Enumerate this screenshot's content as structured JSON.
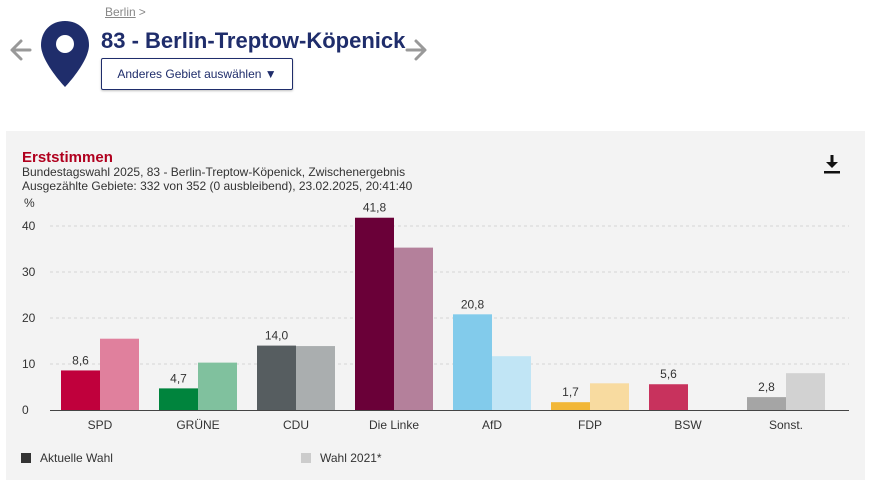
{
  "breadcrumb": {
    "link": "Berlin",
    "separator": ">"
  },
  "header": {
    "title": "83 - Berlin-Treptow-Köpenick",
    "select_button": "Anderes Gebiet auswählen ▼"
  },
  "icons": {
    "pin": "map-pin-icon",
    "prev": "arrow-left-icon",
    "next": "arrow-right-icon",
    "download": "download-icon"
  },
  "chart_data": {
    "type": "bar",
    "title": "Erststimmen",
    "subtitle": [
      "Bundestagswahl 2025, 83 - Berlin-Treptow-Köpenick, Zwischenergebnis",
      "Ausgezählte Gebiete: 332 von 352 (0 ausbleibend), 23.02.2025, 20:41:40"
    ],
    "ylabel": "%",
    "ylim": [
      0,
      45
    ],
    "yticks": [
      0,
      10,
      20,
      30,
      40
    ],
    "grid": true,
    "legend_position": "bottom-left",
    "categories": [
      "SPD",
      "GRÜNE",
      "CDU",
      "Die Linke",
      "AfD",
      "FDP",
      "BSW",
      "Sonst."
    ],
    "series": [
      {
        "name": "Aktuelle Wahl",
        "values": [
          8.6,
          4.7,
          14.0,
          41.8,
          20.8,
          1.7,
          5.6,
          2.8
        ],
        "labels": [
          "8,6",
          "4,7",
          "14,0",
          "41,8",
          "20,8",
          "1,7",
          "5,6",
          "2,8"
        ],
        "colors": [
          "#c0003c",
          "#00843d",
          "#565d60",
          "#6a0038",
          "#82cbeb",
          "#f2b737",
          "#c8325d",
          "#a5a5a5"
        ]
      },
      {
        "name": "Wahl 2021*",
        "values": [
          15.5,
          10.3,
          13.9,
          35.3,
          11.7,
          5.8,
          null,
          8.0
        ],
        "colors": [
          "#e0809d",
          "#80c19e",
          "#aaaeaf",
          "#b4809b",
          "#c1e5f5",
          "#f8dba0",
          "#e398ae",
          "#d2d2d2"
        ]
      }
    ],
    "legend_colors": [
      "#333333",
      "#cccccc"
    ]
  }
}
